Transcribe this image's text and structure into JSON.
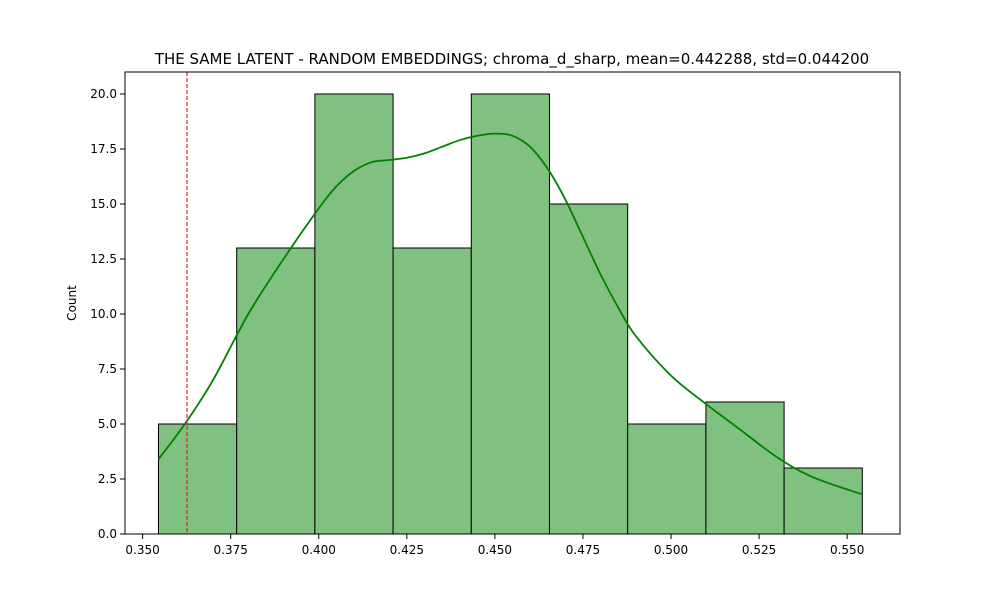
{
  "chart_data": {
    "type": "bar",
    "subtype": "histogram-with-kde",
    "title": "THE SAME LATENT - RANDOM EMBEDDINGS; chroma_d_sharp, mean=0.442288, std=0.044200",
    "xlabel": "",
    "ylabel": "Count",
    "xlim": [
      0.345,
      0.565
    ],
    "ylim": [
      0,
      21
    ],
    "xticks": [
      0.35,
      0.375,
      0.4,
      0.425,
      0.45,
      0.475,
      0.5,
      0.525,
      0.55
    ],
    "xtick_labels": [
      "0.350",
      "0.375",
      "0.400",
      "0.425",
      "0.450",
      "0.475",
      "0.500",
      "0.525",
      "0.550"
    ],
    "yticks": [
      0,
      2.5,
      5,
      7.5,
      10,
      12.5,
      15,
      17.5,
      20
    ],
    "ytick_labels": [
      "0.0",
      "2.5",
      "5.0",
      "7.5",
      "10.0",
      "12.5",
      "15.0",
      "17.5",
      "20.0"
    ],
    "bin_edges": [
      0.3545,
      0.3767,
      0.3989,
      0.4211,
      0.4433,
      0.4655,
      0.4877,
      0.5099,
      0.5321,
      0.5543
    ],
    "values": [
      5,
      13,
      20,
      13,
      20,
      15,
      5,
      6,
      3
    ],
    "kde": {
      "x": [
        0.3545,
        0.362,
        0.37,
        0.38,
        0.39,
        0.4,
        0.405,
        0.41,
        0.415,
        0.42,
        0.425,
        0.43,
        0.435,
        0.44,
        0.445,
        0.45,
        0.455,
        0.46,
        0.465,
        0.47,
        0.475,
        0.48,
        0.485,
        0.49,
        0.5,
        0.51,
        0.52,
        0.53,
        0.54,
        0.5543
      ],
      "y": [
        3.4,
        5.0,
        7.0,
        10.0,
        12.5,
        14.8,
        15.8,
        16.5,
        16.9,
        17.0,
        17.1,
        17.3,
        17.6,
        17.9,
        18.1,
        18.2,
        18.1,
        17.6,
        16.6,
        15.2,
        13.5,
        11.8,
        10.3,
        9.0,
        7.2,
        5.9,
        4.7,
        3.5,
        2.6,
        1.8
      ]
    },
    "vline": {
      "x": 0.3626,
      "style": "dashed"
    },
    "grid": false,
    "colors": {
      "bar_fill": "#80c080",
      "bar_edge": "#000000",
      "kde_line": "#008000",
      "vline": "#d62728"
    }
  }
}
